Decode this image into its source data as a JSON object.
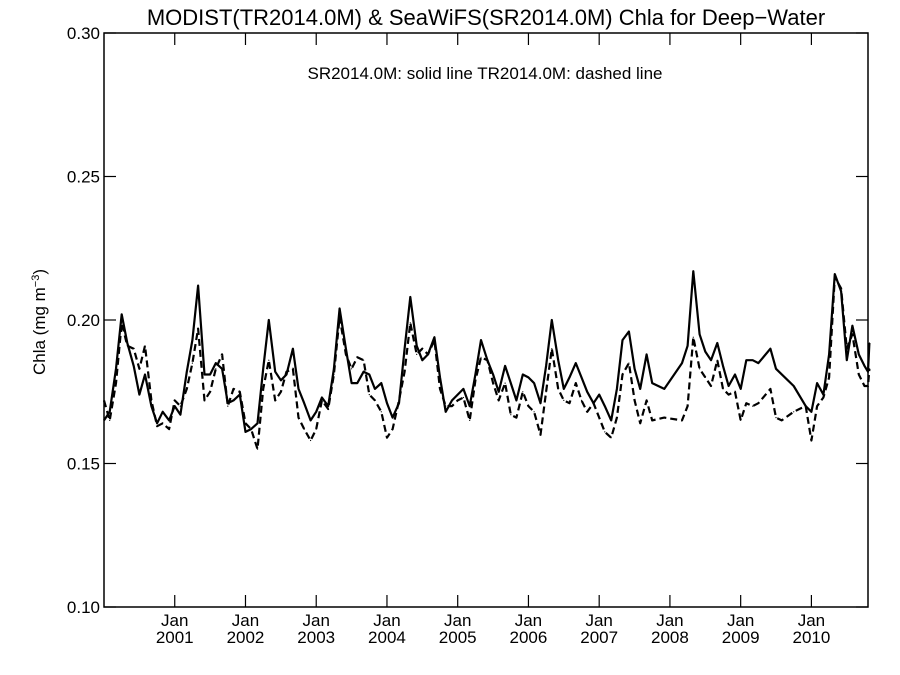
{
  "chart_data": {
    "type": "line",
    "title": "MODIST(TR2014.0M) & SeaWiFS(SR2014.0M)  Chla for Deep−Water",
    "ylabel_main": "Chla (mg m",
    "ylabel_sup": "−3",
    "ylabel_close": ")",
    "annotation": "SR2014.0M: solid line   TR2014.0M: dashed line",
    "ylim": [
      0.1,
      0.3
    ],
    "xlim": [
      2000.0,
      2010.8
    ],
    "grid": false,
    "yticks": [
      {
        "value": 0.1,
        "label": "0.10"
      },
      {
        "value": 0.15,
        "label": "0.15"
      },
      {
        "value": 0.2,
        "label": "0.20"
      },
      {
        "value": 0.25,
        "label": "0.25"
      },
      {
        "value": 0.3,
        "label": "0.30"
      }
    ],
    "xticks": [
      {
        "value": 2001,
        "month": "Jan",
        "year": "2001"
      },
      {
        "value": 2002,
        "month": "Jan",
        "year": "2002"
      },
      {
        "value": 2003,
        "month": "Jan",
        "year": "2003"
      },
      {
        "value": 2004,
        "month": "Jan",
        "year": "2004"
      },
      {
        "value": 2005,
        "month": "Jan",
        "year": "2005"
      },
      {
        "value": 2006,
        "month": "Jan",
        "year": "2006"
      },
      {
        "value": 2007,
        "month": "Jan",
        "year": "2007"
      },
      {
        "value": 2008,
        "month": "Jan",
        "year": "2008"
      },
      {
        "value": 2009,
        "month": "Jan",
        "year": "2009"
      },
      {
        "value": 2010,
        "month": "Jan",
        "year": "2010"
      }
    ],
    "series": [
      {
        "style": "solid",
        "points": [
          [
            2000.0,
            0.165
          ],
          [
            2000.08,
            0.168
          ],
          [
            2000.17,
            0.183
          ],
          [
            2000.25,
            0.202
          ],
          [
            2000.33,
            0.192
          ],
          [
            2000.42,
            0.184
          ],
          [
            2000.5,
            0.174
          ],
          [
            2000.58,
            0.181
          ],
          [
            2000.67,
            0.17
          ],
          [
            2000.75,
            0.164
          ],
          [
            2000.83,
            0.168
          ],
          [
            2000.92,
            0.165
          ],
          [
            2001.0,
            0.17
          ],
          [
            2001.08,
            0.167
          ],
          [
            2001.17,
            0.182
          ],
          [
            2001.25,
            0.193
          ],
          [
            2001.33,
            0.212
          ],
          [
            2001.42,
            0.181
          ],
          [
            2001.5,
            0.181
          ],
          [
            2001.58,
            0.185
          ],
          [
            2001.67,
            0.183
          ],
          [
            2001.75,
            0.171
          ],
          [
            2001.83,
            0.172
          ],
          [
            2001.92,
            0.174
          ],
          [
            2002.0,
            0.161
          ],
          [
            2002.08,
            0.162
          ],
          [
            2002.17,
            0.164
          ],
          [
            2002.25,
            0.183
          ],
          [
            2002.33,
            0.2
          ],
          [
            2002.42,
            0.182
          ],
          [
            2002.5,
            0.179
          ],
          [
            2002.58,
            0.181
          ],
          [
            2002.67,
            0.19
          ],
          [
            2002.75,
            0.176
          ],
          [
            2002.83,
            0.171
          ],
          [
            2002.92,
            0.165
          ],
          [
            2003.0,
            0.168
          ],
          [
            2003.08,
            0.173
          ],
          [
            2003.17,
            0.17
          ],
          [
            2003.25,
            0.183
          ],
          [
            2003.33,
            0.204
          ],
          [
            2003.42,
            0.19
          ],
          [
            2003.5,
            0.178
          ],
          [
            2003.58,
            0.178
          ],
          [
            2003.67,
            0.182
          ],
          [
            2003.75,
            0.181
          ],
          [
            2003.83,
            0.176
          ],
          [
            2003.92,
            0.178
          ],
          [
            2004.0,
            0.171
          ],
          [
            2004.08,
            0.166
          ],
          [
            2004.17,
            0.171
          ],
          [
            2004.25,
            0.19
          ],
          [
            2004.33,
            0.208
          ],
          [
            2004.42,
            0.191
          ],
          [
            2004.5,
            0.186
          ],
          [
            2004.58,
            0.188
          ],
          [
            2004.67,
            0.194
          ],
          [
            2004.75,
            0.18
          ],
          [
            2004.83,
            0.168
          ],
          [
            2004.92,
            0.172
          ],
          [
            2005.0,
            0.174
          ],
          [
            2005.08,
            0.176
          ],
          [
            2005.17,
            0.17
          ],
          [
            2005.25,
            0.181
          ],
          [
            2005.33,
            0.193
          ],
          [
            2005.42,
            0.186
          ],
          [
            2005.5,
            0.181
          ],
          [
            2005.58,
            0.175
          ],
          [
            2005.67,
            0.184
          ],
          [
            2005.75,
            0.178
          ],
          [
            2005.83,
            0.172
          ],
          [
            2005.92,
            0.181
          ],
          [
            2006.0,
            0.18
          ],
          [
            2006.08,
            0.178
          ],
          [
            2006.17,
            0.171
          ],
          [
            2006.25,
            0.184
          ],
          [
            2006.33,
            0.2
          ],
          [
            2006.42,
            0.186
          ],
          [
            2006.5,
            0.176
          ],
          [
            2006.58,
            0.18
          ],
          [
            2006.67,
            0.185
          ],
          [
            2006.75,
            0.18
          ],
          [
            2006.83,
            0.175
          ],
          [
            2006.92,
            0.171
          ],
          [
            2007.0,
            0.174
          ],
          [
            2007.08,
            0.17
          ],
          [
            2007.17,
            0.165
          ],
          [
            2007.25,
            0.176
          ],
          [
            2007.33,
            0.193
          ],
          [
            2007.42,
            0.196
          ],
          [
            2007.5,
            0.183
          ],
          [
            2007.58,
            0.176
          ],
          [
            2007.67,
            0.188
          ],
          [
            2007.75,
            0.178
          ],
          [
            2007.92,
            0.176
          ],
          [
            2008.17,
            0.185
          ],
          [
            2008.25,
            0.191
          ],
          [
            2008.33,
            0.217
          ],
          [
            2008.42,
            0.195
          ],
          [
            2008.5,
            0.189
          ],
          [
            2008.58,
            0.186
          ],
          [
            2008.67,
            0.192
          ],
          [
            2008.75,
            0.184
          ],
          [
            2008.83,
            0.177
          ],
          [
            2008.92,
            0.181
          ],
          [
            2009.0,
            0.176
          ],
          [
            2009.08,
            0.186
          ],
          [
            2009.17,
            0.186
          ],
          [
            2009.25,
            0.185
          ],
          [
            2009.42,
            0.19
          ],
          [
            2009.5,
            0.183
          ],
          [
            2009.75,
            0.177
          ],
          [
            2009.92,
            0.17
          ],
          [
            2010.0,
            0.168
          ],
          [
            2010.08,
            0.178
          ],
          [
            2010.17,
            0.174
          ],
          [
            2010.25,
            0.188
          ],
          [
            2010.33,
            0.216
          ],
          [
            2010.42,
            0.21
          ],
          [
            2010.5,
            0.186
          ],
          [
            2010.58,
            0.198
          ],
          [
            2010.67,
            0.188
          ],
          [
            2010.75,
            0.184
          ],
          [
            2010.8,
            0.182
          ],
          [
            2010.82,
            0.192
          ]
        ]
      },
      {
        "style": "dashed",
        "points": [
          [
            2000.0,
            0.172
          ],
          [
            2000.08,
            0.165
          ],
          [
            2000.17,
            0.178
          ],
          [
            2000.25,
            0.199
          ],
          [
            2000.33,
            0.191
          ],
          [
            2000.42,
            0.19
          ],
          [
            2000.5,
            0.183
          ],
          [
            2000.58,
            0.191
          ],
          [
            2000.67,
            0.172
          ],
          [
            2000.75,
            0.163
          ],
          [
            2000.83,
            0.164
          ],
          [
            2000.92,
            0.162
          ],
          [
            2001.0,
            0.172
          ],
          [
            2001.08,
            0.17
          ],
          [
            2001.17,
            0.176
          ],
          [
            2001.25,
            0.185
          ],
          [
            2001.33,
            0.197
          ],
          [
            2001.42,
            0.172
          ],
          [
            2001.5,
            0.175
          ],
          [
            2001.58,
            0.183
          ],
          [
            2001.67,
            0.188
          ],
          [
            2001.75,
            0.17
          ],
          [
            2001.83,
            0.176
          ],
          [
            2001.92,
            0.175
          ],
          [
            2002.0,
            0.164
          ],
          [
            2002.08,
            0.162
          ],
          [
            2002.17,
            0.155
          ],
          [
            2002.25,
            0.176
          ],
          [
            2002.33,
            0.186
          ],
          [
            2002.42,
            0.172
          ],
          [
            2002.5,
            0.175
          ],
          [
            2002.58,
            0.182
          ],
          [
            2002.67,
            0.183
          ],
          [
            2002.75,
            0.166
          ],
          [
            2002.83,
            0.162
          ],
          [
            2002.92,
            0.158
          ],
          [
            2003.0,
            0.162
          ],
          [
            2003.08,
            0.172
          ],
          [
            2003.17,
            0.169
          ],
          [
            2003.25,
            0.181
          ],
          [
            2003.33,
            0.201
          ],
          [
            2003.42,
            0.188
          ],
          [
            2003.5,
            0.183
          ],
          [
            2003.58,
            0.187
          ],
          [
            2003.67,
            0.186
          ],
          [
            2003.75,
            0.174
          ],
          [
            2003.83,
            0.172
          ],
          [
            2003.92,
            0.168
          ],
          [
            2004.0,
            0.159
          ],
          [
            2004.08,
            0.162
          ],
          [
            2004.17,
            0.172
          ],
          [
            2004.25,
            0.182
          ],
          [
            2004.33,
            0.199
          ],
          [
            2004.42,
            0.188
          ],
          [
            2004.5,
            0.19
          ],
          [
            2004.58,
            0.188
          ],
          [
            2004.67,
            0.193
          ],
          [
            2004.75,
            0.176
          ],
          [
            2004.83,
            0.17
          ],
          [
            2004.92,
            0.17
          ],
          [
            2005.0,
            0.172
          ],
          [
            2005.08,
            0.173
          ],
          [
            2005.17,
            0.165
          ],
          [
            2005.25,
            0.179
          ],
          [
            2005.33,
            0.187
          ],
          [
            2005.42,
            0.186
          ],
          [
            2005.5,
            0.178
          ],
          [
            2005.58,
            0.172
          ],
          [
            2005.67,
            0.178
          ],
          [
            2005.75,
            0.167
          ],
          [
            2005.83,
            0.166
          ],
          [
            2005.92,
            0.175
          ],
          [
            2006.0,
            0.17
          ],
          [
            2006.08,
            0.168
          ],
          [
            2006.17,
            0.16
          ],
          [
            2006.25,
            0.175
          ],
          [
            2006.33,
            0.19
          ],
          [
            2006.42,
            0.176
          ],
          [
            2006.5,
            0.172
          ],
          [
            2006.58,
            0.171
          ],
          [
            2006.67,
            0.178
          ],
          [
            2006.75,
            0.172
          ],
          [
            2006.83,
            0.168
          ],
          [
            2006.92,
            0.171
          ],
          [
            2007.0,
            0.166
          ],
          [
            2007.08,
            0.161
          ],
          [
            2007.17,
            0.159
          ],
          [
            2007.25,
            0.166
          ],
          [
            2007.33,
            0.181
          ],
          [
            2007.42,
            0.185
          ],
          [
            2007.5,
            0.172
          ],
          [
            2007.58,
            0.164
          ],
          [
            2007.67,
            0.172
          ],
          [
            2007.75,
            0.165
          ],
          [
            2007.92,
            0.166
          ],
          [
            2008.17,
            0.165
          ],
          [
            2008.25,
            0.17
          ],
          [
            2008.33,
            0.194
          ],
          [
            2008.42,
            0.183
          ],
          [
            2008.5,
            0.18
          ],
          [
            2008.58,
            0.177
          ],
          [
            2008.67,
            0.186
          ],
          [
            2008.75,
            0.176
          ],
          [
            2008.83,
            0.174
          ],
          [
            2008.92,
            0.175
          ],
          [
            2009.0,
            0.165
          ],
          [
            2009.08,
            0.171
          ],
          [
            2009.17,
            0.17
          ],
          [
            2009.25,
            0.171
          ],
          [
            2009.42,
            0.176
          ],
          [
            2009.5,
            0.166
          ],
          [
            2009.58,
            0.165
          ],
          [
            2009.75,
            0.168
          ],
          [
            2009.83,
            0.169
          ],
          [
            2009.92,
            0.17
          ],
          [
            2010.0,
            0.158
          ],
          [
            2010.08,
            0.17
          ],
          [
            2010.17,
            0.173
          ],
          [
            2010.25,
            0.18
          ],
          [
            2010.33,
            0.215
          ],
          [
            2010.42,
            0.211
          ],
          [
            2010.5,
            0.19
          ],
          [
            2010.58,
            0.195
          ],
          [
            2010.67,
            0.181
          ],
          [
            2010.75,
            0.177
          ],
          [
            2010.8,
            0.177
          ],
          [
            2010.82,
            0.183
          ]
        ]
      }
    ]
  }
}
